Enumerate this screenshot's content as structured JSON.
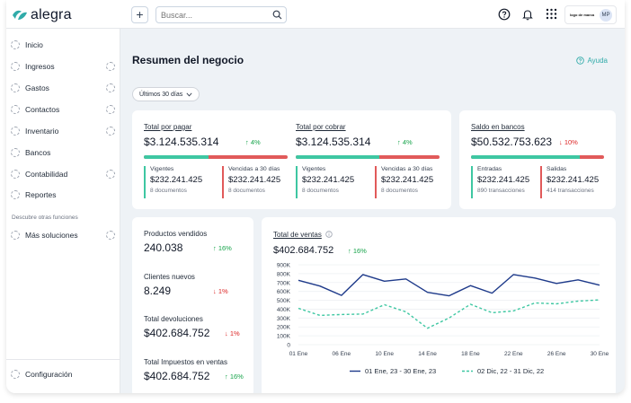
{
  "brand": {
    "name": "alegra",
    "partner_logo": "logo de marca",
    "avatar_initials": "MP",
    "accent": "#30aba9"
  },
  "search": {
    "placeholder": "Buscar..."
  },
  "sidebar": {
    "items": [
      {
        "label": "Inicio",
        "expand": false
      },
      {
        "label": "Ingresos",
        "expand": true
      },
      {
        "label": "Gastos",
        "expand": true
      },
      {
        "label": "Contactos",
        "expand": true
      },
      {
        "label": "Inventario",
        "expand": true
      },
      {
        "label": "Bancos",
        "expand": false
      },
      {
        "label": "Contabilidad",
        "expand": true
      },
      {
        "label": "Reportes",
        "expand": false
      }
    ],
    "section_label": "Descubre otras funciones",
    "extra_item": {
      "label": "Más soluciones"
    },
    "config_item": {
      "label": "Configuración"
    }
  },
  "page": {
    "title": "Resumen del negocio",
    "help": "Ayuda",
    "filter": "Últimos 30 días"
  },
  "kpis": {
    "por_pagar": {
      "label": "Total por pagar",
      "value": "$3.124.535.314",
      "delta": "4%",
      "bar_fraction": 0.45,
      "vigentes": {
        "label": "Vigentes",
        "value": "$232.241.425",
        "count": "8 documentos"
      },
      "vencidas": {
        "label": "Vencidas a 30 días",
        "value": "$232.241.425",
        "count": "8 documentos"
      }
    },
    "por_cobrar": {
      "label": "Total por cobrar",
      "value": "$3.124.535.314",
      "delta": "4%",
      "bar_fraction": 0.58,
      "vigentes": {
        "label": "Vigentes",
        "value": "$232.241.425",
        "count": "8 documentos"
      },
      "vencidas": {
        "label": "Vencidas a 30 días",
        "value": "$232.241.425",
        "count": "8 documentos"
      }
    },
    "bancos": {
      "label": "Saldo en bancos",
      "value": "$50.532.753.623",
      "delta": "10%",
      "bar_fraction": 0.82,
      "entradas": {
        "label": "Entradas",
        "value": "$232.241.425",
        "count": "890 transacciones"
      },
      "salidas": {
        "label": "Salidas",
        "value": "$232.241.425",
        "count": "414 transacciones"
      }
    }
  },
  "stats": [
    {
      "label": "Productos vendidos",
      "value": "240.038",
      "delta": "16%",
      "direction": "up"
    },
    {
      "label": "Clientes nuevos",
      "value": "8.249",
      "delta": "1%",
      "direction": "down"
    },
    {
      "label": "Total devoluciones",
      "value": "$402.684.752",
      "delta": "1%",
      "direction": "down"
    },
    {
      "label": "Total Impuestos en ventas",
      "value": "$402.684.752",
      "delta": "16%",
      "direction": "up"
    }
  ],
  "sales": {
    "title": "Total de ventas",
    "total": "$402.684.752",
    "delta": "16%"
  },
  "chart_data": {
    "type": "line",
    "x": [
      "01 Ene",
      "03 Ene",
      "06 Ene",
      "08 Ene",
      "10 Ene",
      "12 Ene",
      "14 Ene",
      "16 Ene",
      "18 Ene",
      "20 Ene",
      "22 Ene",
      "24 Ene",
      "26 Ene",
      "28 Ene",
      "30 Ene"
    ],
    "xticks": [
      "01 Ene",
      "06 Ene",
      "10 Ene",
      "14 Ene",
      "18 Ene",
      "22 Ene",
      "26 Ene",
      "30 Ene"
    ],
    "yticks": [
      "0",
      "100K",
      "200K",
      "300K",
      "400K",
      "500K",
      "600K",
      "700K",
      "800K",
      "900K"
    ],
    "ylim": [
      0,
      900000
    ],
    "grid": true,
    "legend": "bottom",
    "series": [
      {
        "name": "01 Ene, 23 - 30 Ene, 23",
        "color": "#1e3a8a",
        "style": "solid",
        "values": [
          725000,
          660000,
          555000,
          790000,
          715000,
          740000,
          590000,
          550000,
          665000,
          580000,
          790000,
          750000,
          690000,
          730000,
          670000
        ]
      },
      {
        "name": "02 Dic, 22 - 31 Dic, 22",
        "color": "#3ec7a2",
        "style": "dashed",
        "values": [
          410000,
          330000,
          340000,
          345000,
          450000,
          370000,
          185000,
          300000,
          455000,
          360000,
          380000,
          470000,
          460000,
          490000,
          505000
        ]
      }
    ]
  }
}
